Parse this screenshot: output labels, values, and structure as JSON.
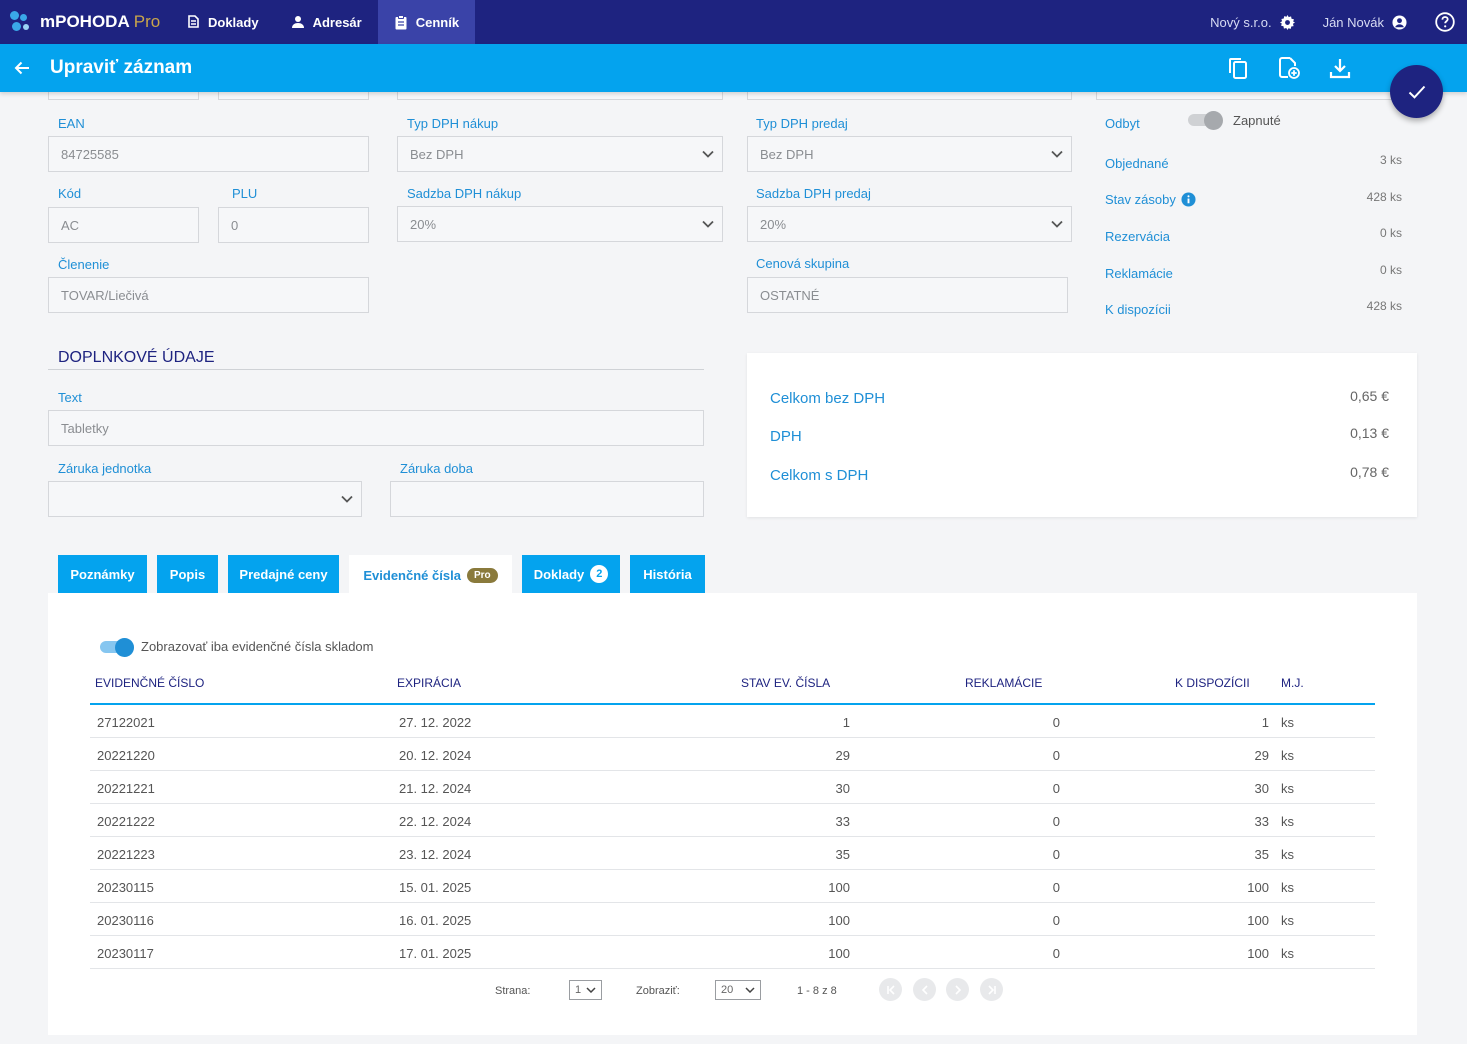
{
  "app": {
    "name": "mPOHODA",
    "edition": "Pro",
    "company": "Nový s.r.o.",
    "user": "Ján Novák"
  },
  "nav": [
    {
      "label": "Doklady",
      "icon": "documents-icon"
    },
    {
      "label": "Adresár",
      "icon": "person-icon"
    },
    {
      "label": "Cenník",
      "icon": "clipboard-icon",
      "active": true
    }
  ],
  "titlebar": {
    "title": "Upraviť záznam"
  },
  "form": {
    "ean": {
      "label": "EAN",
      "value": "84725585"
    },
    "kod": {
      "label": "Kód",
      "value": "AC"
    },
    "plu": {
      "label": "PLU",
      "value": "0"
    },
    "clenenie": {
      "label": "Členenie",
      "value": "TOVAR/Liečivá"
    },
    "typ_dph_nakup": {
      "label": "Typ DPH nákup",
      "value": "Bez DPH"
    },
    "sadzba_dph_nakup": {
      "label": "Sadzba DPH nákup",
      "value": "20%"
    },
    "typ_dph_predaj": {
      "label": "Typ DPH predaj",
      "value": "Bez DPH"
    },
    "sadzba_dph_predaj": {
      "label": "Sadzba DPH predaj",
      "value": "20%"
    },
    "cenova_skupina": {
      "label": "Cenová skupina",
      "value": "OSTATNÉ"
    }
  },
  "stock": {
    "odbyt": {
      "label": "Odbyt",
      "toggle_label": "Zapnuté"
    },
    "items": [
      {
        "label": "Objednané",
        "value": "3 ks"
      },
      {
        "label": "Stav zásoby",
        "value": "428 ks",
        "info": true
      },
      {
        "label": "Rezervácia",
        "value": "0 ks"
      },
      {
        "label": "Reklamácie",
        "value": "0 ks"
      },
      {
        "label": "K dispozícii",
        "value": "428 ks"
      }
    ]
  },
  "extra": {
    "title": "DOPLNKOVÉ ÚDAJE",
    "text": {
      "label": "Text",
      "value": "Tabletky"
    },
    "zaruka_jednotka": {
      "label": "Záruka jednotka",
      "value": ""
    },
    "zaruka_doba": {
      "label": "Záruka doba",
      "value": ""
    }
  },
  "totals": [
    {
      "label": "Celkom bez DPH",
      "value": "0,65 €"
    },
    {
      "label": "DPH",
      "value": "0,13 €"
    },
    {
      "label": "Celkom s DPH",
      "value": "0,78 €"
    }
  ],
  "tabs": [
    {
      "label": "Poznámky"
    },
    {
      "label": "Popis"
    },
    {
      "label": "Predajné ceny"
    },
    {
      "label": "Evidenčné čísla",
      "badge": "Pro",
      "active": true
    },
    {
      "label": "Doklady",
      "count": "2"
    },
    {
      "label": "História"
    }
  ],
  "table": {
    "toggle_label": "Zobrazovať iba evidenčné čísla skladom",
    "columns": [
      "EVIDENČNÉ ČÍSLO",
      "EXPIRÁCIA",
      "STAV EV. ČÍSLA",
      "REKLAMÁCIE",
      "K DISPOZÍCII",
      "M.J."
    ],
    "rows": [
      {
        "number": "27122021",
        "expiry": "27. 12. 2022",
        "stav": "1",
        "reklamacie": "0",
        "dispozicii": "1",
        "mj": "ks"
      },
      {
        "number": "20221220",
        "expiry": "20. 12. 2024",
        "stav": "29",
        "reklamacie": "0",
        "dispozicii": "29",
        "mj": "ks"
      },
      {
        "number": "20221221",
        "expiry": "21. 12. 2024",
        "stav": "30",
        "reklamacie": "0",
        "dispozicii": "30",
        "mj": "ks"
      },
      {
        "number": "20221222",
        "expiry": "22. 12. 2024",
        "stav": "33",
        "reklamacie": "0",
        "dispozicii": "33",
        "mj": "ks"
      },
      {
        "number": "20221223",
        "expiry": "23. 12. 2024",
        "stav": "35",
        "reklamacie": "0",
        "dispozicii": "35",
        "mj": "ks"
      },
      {
        "number": "20230115",
        "expiry": "15. 01. 2025",
        "stav": "100",
        "reklamacie": "0",
        "dispozicii": "100",
        "mj": "ks"
      },
      {
        "number": "20230116",
        "expiry": "16. 01. 2025",
        "stav": "100",
        "reklamacie": "0",
        "dispozicii": "100",
        "mj": "ks"
      },
      {
        "number": "20230117",
        "expiry": "17. 01. 2025",
        "stav": "100",
        "reklamacie": "0",
        "dispozicii": "100",
        "mj": "ks"
      }
    ]
  },
  "pager": {
    "page_label": "Strana:",
    "page_value": "1",
    "show_label": "Zobraziť:",
    "show_value": "20",
    "range": "1 - 8 z 8"
  },
  "colors": {
    "navy": "#1e2380",
    "accent": "#04a3ee",
    "label_blue": "#1f8fd6",
    "pro_gold": "#c9a54a"
  }
}
